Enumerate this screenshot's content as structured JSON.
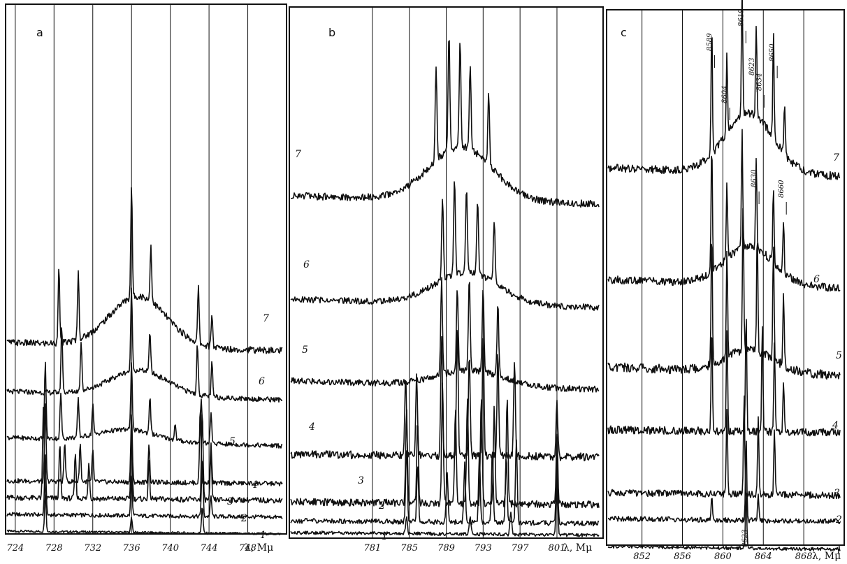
{
  "chart_data": [
    {
      "panel": "a",
      "type": "line",
      "x_axis_label": "λ, Mμ",
      "xticks": [
        "724",
        "728",
        "732",
        "736",
        "740",
        "744",
        "748"
      ],
      "x_range": [
        723,
        752
      ],
      "series": [
        {
          "name": "1",
          "peaks": [
            [
              727.1,
              1.0
            ],
            [
              736.0,
              0.4
            ],
            [
              743.3,
              0.7
            ]
          ]
        },
        {
          "name": "2",
          "peaks": [
            [
              727.1,
              0.9
            ],
            [
              736.0,
              0.6
            ],
            [
              743.3,
              0.9
            ],
            [
              744.2,
              0.3
            ]
          ]
        },
        {
          "name": "3",
          "peaks": [
            [
              726.9,
              1.0
            ],
            [
              728.6,
              0.6
            ],
            [
              730.2,
              0.5
            ],
            [
              731.6,
              0.4
            ],
            [
              736.0,
              0.8
            ],
            [
              737.8,
              0.4
            ],
            [
              743.3,
              1.0
            ],
            [
              744.2,
              0.5
            ]
          ]
        },
        {
          "name": "4",
          "peaks": [
            [
              727.1,
              1.0
            ],
            [
              729.1,
              0.5
            ],
            [
              730.7,
              0.5
            ],
            [
              732.0,
              0.4
            ],
            [
              736.0,
              0.9
            ],
            [
              737.8,
              0.5
            ],
            [
              743.1,
              1.0
            ],
            [
              744.2,
              0.5
            ]
          ]
        },
        {
          "name": "5",
          "peaks": [
            [
              727.1,
              1.0
            ],
            [
              728.7,
              0.6
            ],
            [
              730.5,
              0.5
            ],
            [
              732.0,
              0.4
            ],
            [
              736.0,
              0.9
            ],
            [
              737.9,
              0.5
            ],
            [
              740.5,
              0.2
            ],
            [
              743.2,
              0.6
            ],
            [
              744.2,
              0.4
            ]
          ]
        },
        {
          "name": "6",
          "peaks": [
            [
              728.8,
              0.8
            ],
            [
              730.8,
              0.6
            ],
            [
              736.0,
              1.0
            ],
            [
              737.9,
              0.5
            ],
            [
              742.8,
              0.6
            ],
            [
              744.3,
              0.4
            ]
          ]
        },
        {
          "name": "7",
          "peaks": [
            [
              728.5,
              0.7
            ],
            [
              730.5,
              0.6
            ],
            [
              736.0,
              1.0
            ],
            [
              738.0,
              0.5
            ],
            [
              742.9,
              0.5
            ],
            [
              744.3,
              0.3
            ]
          ]
        }
      ]
    },
    {
      "panel": "b",
      "type": "line",
      "x_axis_label": "λ, Mμ",
      "xticks": [
        "781",
        "785",
        "789",
        "793",
        "797",
        "801"
      ],
      "x_range": [
        772,
        806
      ],
      "series": [
        {
          "name": "1",
          "peaks": [
            [
              784.7,
              0.3
            ],
            [
              791.6,
              0.3
            ],
            [
              796.0,
              0.4
            ],
            [
              801.0,
              1.0
            ]
          ]
        },
        {
          "name": "2",
          "peaks": [
            [
              784.7,
              0.9
            ],
            [
              785.9,
              0.7
            ],
            [
              789.1,
              0.6
            ],
            [
              791.0,
              0.7
            ],
            [
              792.6,
              0.8
            ],
            [
              794.0,
              0.9
            ],
            [
              795.5,
              0.8
            ],
            [
              796.6,
              1.0
            ],
            [
              801.0,
              0.8
            ]
          ]
        },
        {
          "name": "3",
          "peaks": [
            [
              784.7,
              0.8
            ],
            [
              785.9,
              0.7
            ],
            [
              788.6,
              1.0
            ],
            [
              790.0,
              0.8
            ],
            [
              791.3,
              0.9
            ],
            [
              792.8,
              0.9
            ],
            [
              794.2,
              0.8
            ],
            [
              795.6,
              0.9
            ],
            [
              801.0,
              0.6
            ]
          ]
        },
        {
          "name": "4",
          "peaks": [
            [
              784.6,
              0.6
            ],
            [
              785.8,
              0.6
            ],
            [
              788.5,
              0.9
            ],
            [
              790.2,
              1.0
            ],
            [
              791.5,
              0.8
            ],
            [
              793.0,
              0.9
            ],
            [
              794.6,
              0.8
            ],
            [
              796.4,
              0.7
            ],
            [
              801.0,
              0.4
            ]
          ]
        },
        {
          "name": "5",
          "peaks": [
            [
              788.5,
              0.9
            ],
            [
              790.2,
              0.8
            ],
            [
              791.5,
              0.9
            ],
            [
              793.0,
              0.8
            ],
            [
              794.6,
              0.7
            ]
          ]
        },
        {
          "name": "6",
          "peaks": [
            [
              788.6,
              0.8
            ],
            [
              789.9,
              0.9
            ],
            [
              791.2,
              0.8
            ],
            [
              792.4,
              0.7
            ],
            [
              794.2,
              0.6
            ]
          ]
        },
        {
          "name": "7",
          "peaks": [
            [
              787.9,
              0.8
            ],
            [
              789.3,
              1.0
            ],
            [
              790.5,
              0.9
            ],
            [
              791.6,
              0.7
            ],
            [
              793.6,
              0.6
            ]
          ]
        }
      ]
    },
    {
      "panel": "c",
      "type": "line",
      "x_axis_label": "λ, Mμ",
      "xticks": [
        "852",
        "856",
        "860",
        "864",
        "868"
      ],
      "x_range": [
        848.5,
        872
      ],
      "series": [
        {
          "name": "1",
          "peaks": [
            [
              862.3,
              1.0
            ]
          ]
        },
        {
          "name": "2",
          "peaks": [
            [
              858.9,
              0.3
            ],
            [
              862.3,
              1.0
            ],
            [
              863.5,
              0.3
            ]
          ]
        },
        {
          "name": "3",
          "peaks": [
            [
              860.4,
              0.8
            ],
            [
              862.1,
              0.9
            ],
            [
              863.5,
              0.7
            ],
            [
              865.1,
              0.6
            ]
          ]
        },
        {
          "name": "4",
          "peaks": [
            [
              858.9,
              0.8
            ],
            [
              860.4,
              0.8
            ],
            [
              862.3,
              0.9
            ],
            [
              863.9,
              0.8
            ],
            [
              865.1,
              0.7
            ],
            [
              866.0,
              0.4
            ]
          ]
        },
        {
          "name": "5",
          "peaks": [
            [
              858.9,
              0.9
            ],
            [
              860.4,
              0.7
            ],
            [
              862.0,
              1.0
            ],
            [
              863.4,
              0.8
            ],
            [
              865.0,
              0.8
            ],
            [
              866.0,
              0.5
            ]
          ]
        },
        {
          "name": "6",
          "peaks": [
            [
              858.9,
              1.0
            ],
            [
              860.4,
              0.6
            ],
            [
              861.9,
              0.9
            ],
            [
              863.3,
              0.7
            ],
            [
              865.0,
              0.6
            ],
            [
              866.0,
              0.4
            ]
          ]
        },
        {
          "name": "7",
          "peaks": [
            [
              858.9,
              1.0
            ],
            [
              860.4,
              0.6
            ],
            [
              861.9,
              1.0
            ],
            [
              863.3,
              0.7
            ],
            [
              865.0,
              0.8
            ],
            [
              866.1,
              0.4
            ]
          ]
        }
      ],
      "annotations": [
        "8589",
        "8604",
        "8619",
        "8623",
        "8634",
        "8630",
        "8650",
        "8660",
        "8623"
      ]
    }
  ]
}
